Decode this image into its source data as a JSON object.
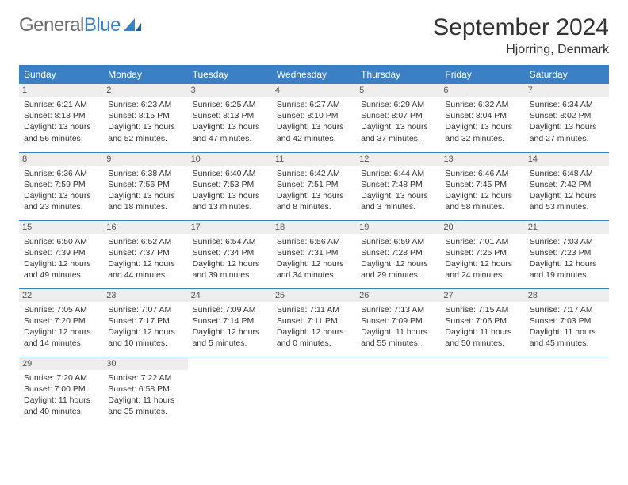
{
  "logo": {
    "text1": "General",
    "text2": "Blue"
  },
  "title": "September 2024",
  "location": "Hjorring, Denmark",
  "colors": {
    "header_bg": "#3b7fc4",
    "header_text": "#ffffff",
    "daynum_bg": "#eeeeee",
    "border": "#3b7fc4",
    "text": "#333333",
    "logo_gray": "#6a6a6a",
    "logo_blue": "#3b7fc4"
  },
  "dayHeaders": [
    "Sunday",
    "Monday",
    "Tuesday",
    "Wednesday",
    "Thursday",
    "Friday",
    "Saturday"
  ],
  "weeks": [
    [
      {
        "n": "1",
        "sr": "Sunrise: 6:21 AM",
        "ss": "Sunset: 8:18 PM",
        "d1": "Daylight: 13 hours",
        "d2": "and 56 minutes."
      },
      {
        "n": "2",
        "sr": "Sunrise: 6:23 AM",
        "ss": "Sunset: 8:15 PM",
        "d1": "Daylight: 13 hours",
        "d2": "and 52 minutes."
      },
      {
        "n": "3",
        "sr": "Sunrise: 6:25 AM",
        "ss": "Sunset: 8:13 PM",
        "d1": "Daylight: 13 hours",
        "d2": "and 47 minutes."
      },
      {
        "n": "4",
        "sr": "Sunrise: 6:27 AM",
        "ss": "Sunset: 8:10 PM",
        "d1": "Daylight: 13 hours",
        "d2": "and 42 minutes."
      },
      {
        "n": "5",
        "sr": "Sunrise: 6:29 AM",
        "ss": "Sunset: 8:07 PM",
        "d1": "Daylight: 13 hours",
        "d2": "and 37 minutes."
      },
      {
        "n": "6",
        "sr": "Sunrise: 6:32 AM",
        "ss": "Sunset: 8:04 PM",
        "d1": "Daylight: 13 hours",
        "d2": "and 32 minutes."
      },
      {
        "n": "7",
        "sr": "Sunrise: 6:34 AM",
        "ss": "Sunset: 8:02 PM",
        "d1": "Daylight: 13 hours",
        "d2": "and 27 minutes."
      }
    ],
    [
      {
        "n": "8",
        "sr": "Sunrise: 6:36 AM",
        "ss": "Sunset: 7:59 PM",
        "d1": "Daylight: 13 hours",
        "d2": "and 23 minutes."
      },
      {
        "n": "9",
        "sr": "Sunrise: 6:38 AM",
        "ss": "Sunset: 7:56 PM",
        "d1": "Daylight: 13 hours",
        "d2": "and 18 minutes."
      },
      {
        "n": "10",
        "sr": "Sunrise: 6:40 AM",
        "ss": "Sunset: 7:53 PM",
        "d1": "Daylight: 13 hours",
        "d2": "and 13 minutes."
      },
      {
        "n": "11",
        "sr": "Sunrise: 6:42 AM",
        "ss": "Sunset: 7:51 PM",
        "d1": "Daylight: 13 hours",
        "d2": "and 8 minutes."
      },
      {
        "n": "12",
        "sr": "Sunrise: 6:44 AM",
        "ss": "Sunset: 7:48 PM",
        "d1": "Daylight: 13 hours",
        "d2": "and 3 minutes."
      },
      {
        "n": "13",
        "sr": "Sunrise: 6:46 AM",
        "ss": "Sunset: 7:45 PM",
        "d1": "Daylight: 12 hours",
        "d2": "and 58 minutes."
      },
      {
        "n": "14",
        "sr": "Sunrise: 6:48 AM",
        "ss": "Sunset: 7:42 PM",
        "d1": "Daylight: 12 hours",
        "d2": "and 53 minutes."
      }
    ],
    [
      {
        "n": "15",
        "sr": "Sunrise: 6:50 AM",
        "ss": "Sunset: 7:39 PM",
        "d1": "Daylight: 12 hours",
        "d2": "and 49 minutes."
      },
      {
        "n": "16",
        "sr": "Sunrise: 6:52 AM",
        "ss": "Sunset: 7:37 PM",
        "d1": "Daylight: 12 hours",
        "d2": "and 44 minutes."
      },
      {
        "n": "17",
        "sr": "Sunrise: 6:54 AM",
        "ss": "Sunset: 7:34 PM",
        "d1": "Daylight: 12 hours",
        "d2": "and 39 minutes."
      },
      {
        "n": "18",
        "sr": "Sunrise: 6:56 AM",
        "ss": "Sunset: 7:31 PM",
        "d1": "Daylight: 12 hours",
        "d2": "and 34 minutes."
      },
      {
        "n": "19",
        "sr": "Sunrise: 6:59 AM",
        "ss": "Sunset: 7:28 PM",
        "d1": "Daylight: 12 hours",
        "d2": "and 29 minutes."
      },
      {
        "n": "20",
        "sr": "Sunrise: 7:01 AM",
        "ss": "Sunset: 7:25 PM",
        "d1": "Daylight: 12 hours",
        "d2": "and 24 minutes."
      },
      {
        "n": "21",
        "sr": "Sunrise: 7:03 AM",
        "ss": "Sunset: 7:23 PM",
        "d1": "Daylight: 12 hours",
        "d2": "and 19 minutes."
      }
    ],
    [
      {
        "n": "22",
        "sr": "Sunrise: 7:05 AM",
        "ss": "Sunset: 7:20 PM",
        "d1": "Daylight: 12 hours",
        "d2": "and 14 minutes."
      },
      {
        "n": "23",
        "sr": "Sunrise: 7:07 AM",
        "ss": "Sunset: 7:17 PM",
        "d1": "Daylight: 12 hours",
        "d2": "and 10 minutes."
      },
      {
        "n": "24",
        "sr": "Sunrise: 7:09 AM",
        "ss": "Sunset: 7:14 PM",
        "d1": "Daylight: 12 hours",
        "d2": "and 5 minutes."
      },
      {
        "n": "25",
        "sr": "Sunrise: 7:11 AM",
        "ss": "Sunset: 7:11 PM",
        "d1": "Daylight: 12 hours",
        "d2": "and 0 minutes."
      },
      {
        "n": "26",
        "sr": "Sunrise: 7:13 AM",
        "ss": "Sunset: 7:09 PM",
        "d1": "Daylight: 11 hours",
        "d2": "and 55 minutes."
      },
      {
        "n": "27",
        "sr": "Sunrise: 7:15 AM",
        "ss": "Sunset: 7:06 PM",
        "d1": "Daylight: 11 hours",
        "d2": "and 50 minutes."
      },
      {
        "n": "28",
        "sr": "Sunrise: 7:17 AM",
        "ss": "Sunset: 7:03 PM",
        "d1": "Daylight: 11 hours",
        "d2": "and 45 minutes."
      }
    ],
    [
      {
        "n": "29",
        "sr": "Sunrise: 7:20 AM",
        "ss": "Sunset: 7:00 PM",
        "d1": "Daylight: 11 hours",
        "d2": "and 40 minutes."
      },
      {
        "n": "30",
        "sr": "Sunrise: 7:22 AM",
        "ss": "Sunset: 6:58 PM",
        "d1": "Daylight: 11 hours",
        "d2": "and 35 minutes."
      },
      null,
      null,
      null,
      null,
      null
    ]
  ]
}
